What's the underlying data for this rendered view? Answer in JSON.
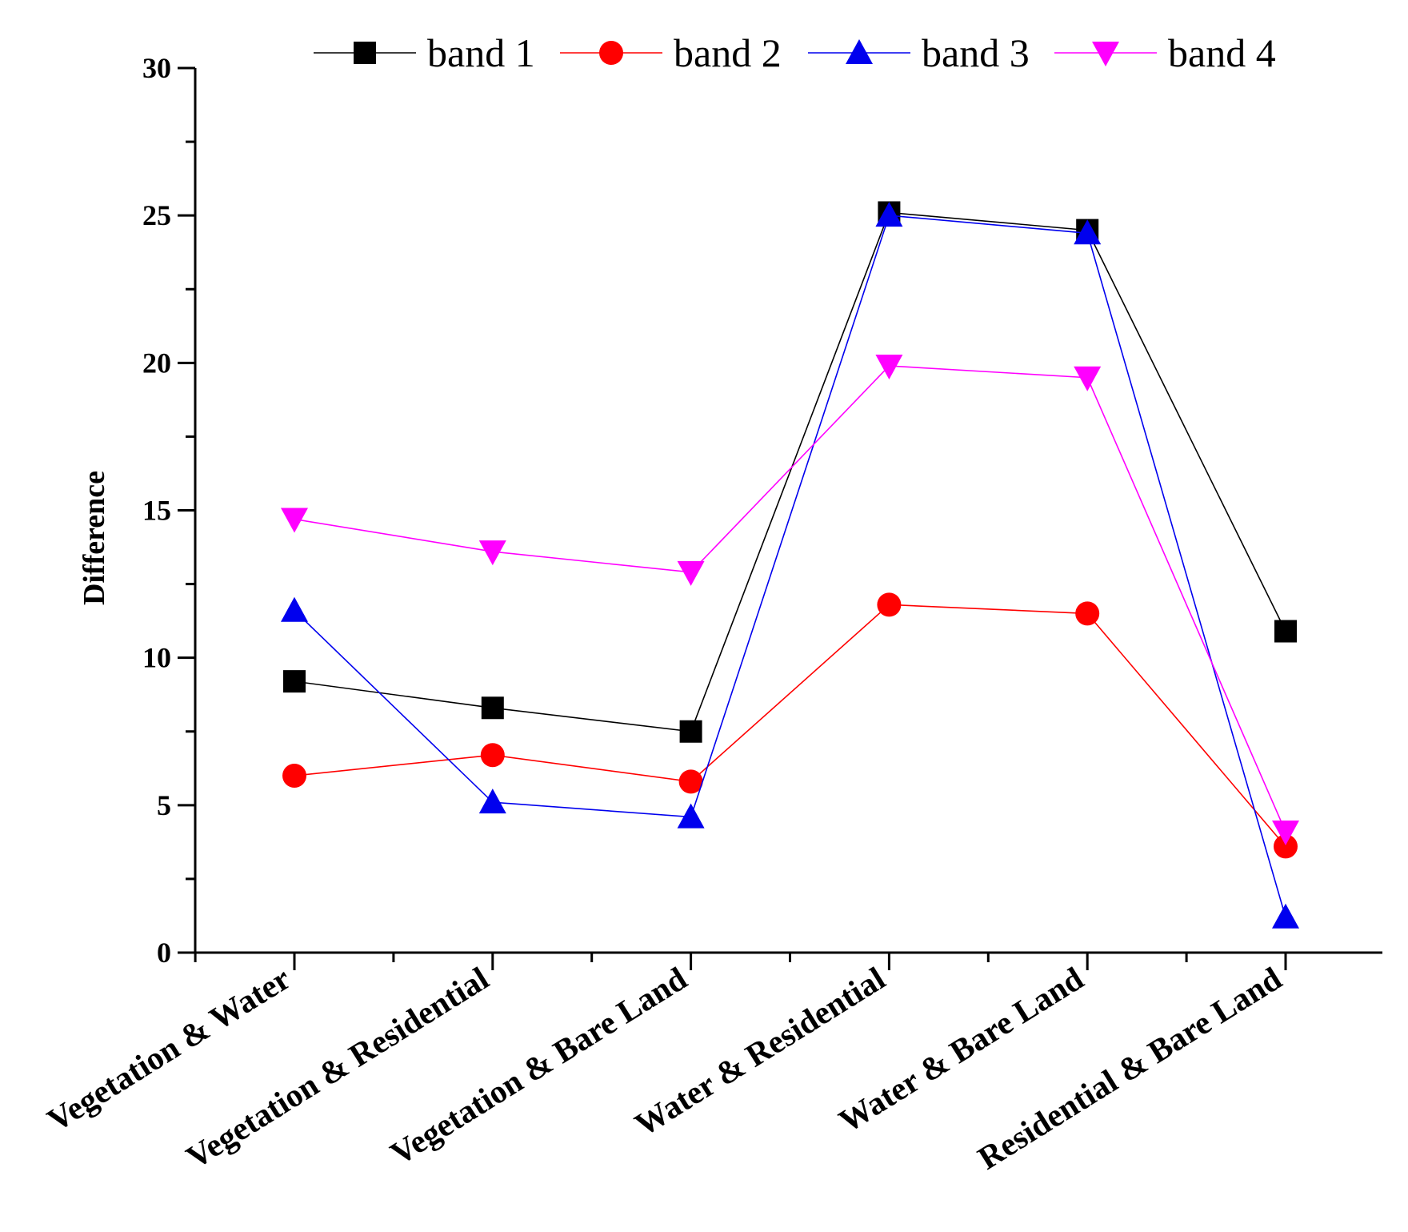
{
  "chart_data": {
    "type": "line",
    "title": "",
    "xlabel": "",
    "ylabel": "Difference",
    "ylim": [
      0,
      30
    ],
    "yticks": [
      "0",
      "5",
      "10",
      "15",
      "20",
      "25",
      "30"
    ],
    "grid": false,
    "legend_position": "top",
    "categories": [
      "Vegetation & Water",
      "Vegetation & Residential",
      "Vegetation & Bare Land",
      "Water & Residential",
      "Water & Bare Land",
      "Residential & Bare Land"
    ],
    "series": [
      {
        "name": "band 1",
        "color": "#000000",
        "marker": "square",
        "values": [
          9.2,
          8.3,
          7.5,
          25.1,
          24.5,
          10.9
        ]
      },
      {
        "name": "band 2",
        "color": "#ff0000",
        "marker": "circle",
        "values": [
          6.0,
          6.7,
          5.8,
          11.8,
          11.5,
          3.6
        ]
      },
      {
        "name": "band 3",
        "color": "#0000ee",
        "marker": "triangle-up",
        "values": [
          11.6,
          5.1,
          4.6,
          25.0,
          24.4,
          1.2
        ]
      },
      {
        "name": "band 4",
        "color": "#ff00ff",
        "marker": "triangle-down",
        "values": [
          14.7,
          13.6,
          12.9,
          19.9,
          19.5,
          4.1
        ]
      }
    ]
  }
}
